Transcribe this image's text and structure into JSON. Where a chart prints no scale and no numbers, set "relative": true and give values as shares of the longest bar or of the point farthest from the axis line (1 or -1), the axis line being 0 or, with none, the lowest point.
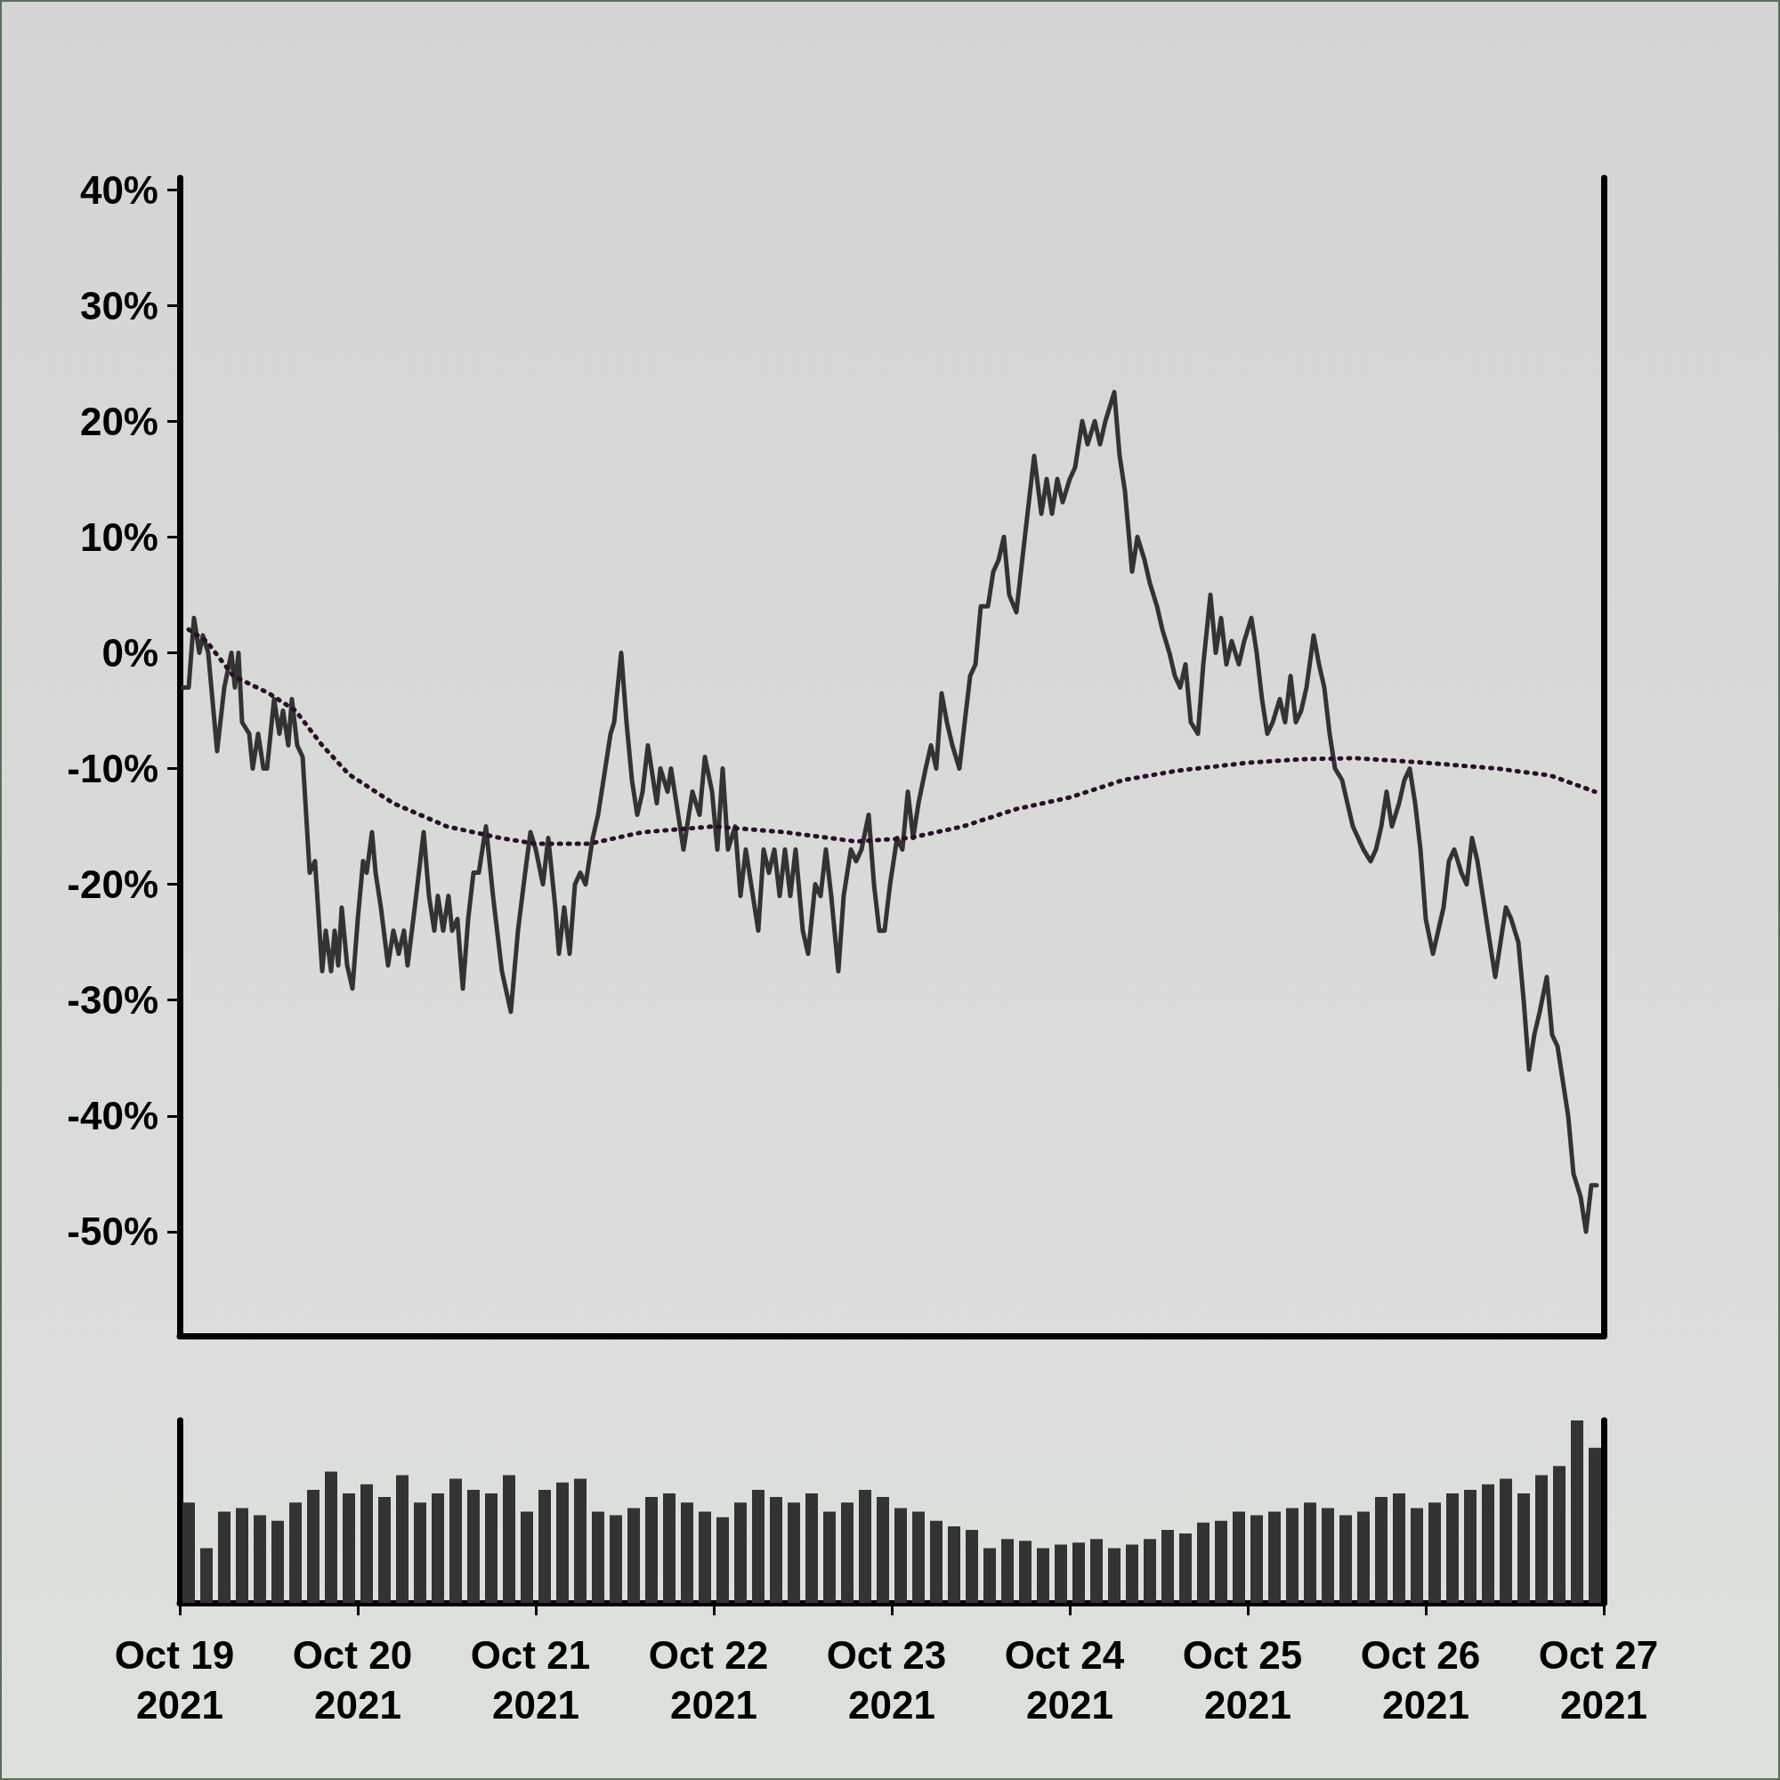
{
  "chart_data": [
    {
      "type": "line",
      "xlim": [
        "2021-10-19T00:00",
        "2021-10-27T00:00"
      ],
      "ylim": [
        -59,
        41
      ],
      "yticks": [
        {
          "value": -50,
          "label": "-50%"
        },
        {
          "value": -40,
          "label": "-40%"
        },
        {
          "value": -30,
          "label": "-30%"
        },
        {
          "value": -20,
          "label": "-20%"
        },
        {
          "value": -10,
          "label": "-10%"
        },
        {
          "value": 0,
          "label": "0%"
        },
        {
          "value": 10,
          "label": "10%"
        },
        {
          "value": 20,
          "label": "20%"
        },
        {
          "value": 30,
          "label": "30%"
        },
        {
          "value": 40,
          "label": "40%"
        }
      ],
      "tick_labels": "y",
      "series": [
        {
          "color": "#333333",
          "line_style": "solid",
          "x": [
            "2021-10-19T00:29",
            "2021-10-19T01:12",
            "2021-10-19T01:55",
            "2021-10-19T02:38",
            "2021-10-19T03:07",
            "2021-10-19T03:50",
            "2021-10-19T05:02",
            "2021-10-19T06:00",
            "2021-10-19T06:58",
            "2021-10-19T07:26",
            "2021-10-19T07:55",
            "2021-10-19T08:24",
            "2021-10-19T09:22",
            "2021-10-19T09:50",
            "2021-10-19T10:34",
            "2021-10-19T11:17",
            "2021-10-19T11:46",
            "2021-10-19T12:43",
            "2021-10-19T13:26",
            "2021-10-19T13:55",
            "2021-10-19T14:38",
            "2021-10-19T15:07",
            "2021-10-19T15:50",
            "2021-10-19T16:34",
            "2021-10-19T17:31",
            "2021-10-19T18:14",
            "2021-10-19T19:12",
            "2021-10-19T19:41",
            "2021-10-19T20:24",
            "2021-10-19T20:53",
            "2021-10-19T21:22",
            "2021-10-19T21:50",
            "2021-10-19T22:34",
            "2021-10-19T23:17",
            "2021-10-20T00:00",
            "2021-10-20T00:43",
            "2021-10-20T01:12",
            "2021-10-20T01:55",
            "2021-10-20T02:24",
            "2021-10-20T03:07",
            "2021-10-20T04:05",
            "2021-10-20T04:48",
            "2021-10-20T05:31",
            "2021-10-20T06:14",
            "2021-10-20T06:43",
            "2021-10-20T07:41",
            "2021-10-20T08:53",
            "2021-10-20T09:36",
            "2021-10-20T10:19",
            "2021-10-20T10:48",
            "2021-10-20T11:31",
            "2021-10-20T12:14",
            "2021-10-20T12:43",
            "2021-10-20T13:26",
            "2021-10-20T14:10",
            "2021-10-20T14:53",
            "2021-10-20T15:36",
            "2021-10-20T16:19",
            "2021-10-20T17:17",
            "2021-10-20T18:14",
            "2021-10-20T19:26",
            "2021-10-20T20:38",
            "2021-10-20T21:36",
            "2021-10-20T22:34",
            "2021-10-20T23:17",
            "2021-10-21T00:00",
            "2021-10-21T00:58",
            "2021-10-21T01:41",
            "2021-10-21T02:38",
            "2021-10-21T03:07",
            "2021-10-21T03:50",
            "2021-10-21T04:34",
            "2021-10-21T05:17",
            "2021-10-21T06:00",
            "2021-10-21T06:43",
            "2021-10-21T07:41",
            "2021-10-21T08:24",
            "2021-10-21T09:22",
            "2021-10-21T10:05",
            "2021-10-21T10:34",
            "2021-10-21T11:31",
            "2021-10-21T12:14",
            "2021-10-21T12:58",
            "2021-10-21T13:41",
            "2021-10-21T14:24",
            "2021-10-21T15:07",
            "2021-10-21T15:36",
            "2021-10-21T16:19",
            "2021-10-21T16:48",
            "2021-10-21T17:46",
            "2021-10-21T18:14",
            "2021-10-21T18:58",
            "2021-10-21T19:55",
            "2021-10-21T20:24",
            "2021-10-21T21:07",
            "2021-10-21T22:05",
            "2021-10-21T22:48",
            "2021-10-21T23:46",
            "2021-10-22T00:29",
            "2021-10-22T01:12",
            "2021-10-22T01:55",
            "2021-10-22T02:53",
            "2021-10-22T03:36",
            "2021-10-22T04:19",
            "2021-10-22T05:02",
            "2021-10-22T06:00",
            "2021-10-22T06:43",
            "2021-10-22T07:26",
            "2021-10-22T08:10",
            "2021-10-22T08:53",
            "2021-10-22T09:36",
            "2021-10-22T10:19",
            "2021-10-22T11:02",
            "2021-10-22T12:00",
            "2021-10-22T12:43",
            "2021-10-22T13:41",
            "2021-10-22T14:24",
            "2021-10-22T15:07",
            "2021-10-22T15:50",
            "2021-10-22T16:48",
            "2021-10-22T17:31",
            "2021-10-22T18:29",
            "2021-10-22T19:12",
            "2021-10-22T19:55",
            "2021-10-22T20:53",
            "2021-10-22T21:36",
            "2021-10-22T22:19",
            "2021-10-22T23:02",
            "2021-10-22T23:46",
            "2021-10-23T00:43",
            "2021-10-23T01:26",
            "2021-10-23T02:10",
            "2021-10-23T02:53",
            "2021-10-23T03:36",
            "2021-10-23T04:34",
            "2021-10-23T05:17",
            "2021-10-23T06:00",
            "2021-10-23T06:43",
            "2021-10-23T07:26",
            "2021-10-23T08:10",
            "2021-10-23T09:07",
            "2021-10-23T09:50",
            "2021-10-23T10:34",
            "2021-10-23T11:17",
            "2021-10-23T12:00",
            "2021-10-23T12:58",
            "2021-10-23T13:41",
            "2021-10-23T14:24",
            "2021-10-23T15:07",
            "2021-10-23T15:50",
            "2021-10-23T16:48",
            "2021-10-23T17:46",
            "2021-10-23T18:29",
            "2021-10-23T19:12",
            "2021-10-23T20:10",
            "2021-10-23T20:53",
            "2021-10-23T21:36",
            "2021-10-23T22:19",
            "2021-10-23T23:02",
            "2021-10-24T00:00",
            "2021-10-24T00:43",
            "2021-10-24T01:41",
            "2021-10-24T02:24",
            "2021-10-24T03:22",
            "2021-10-24T04:05",
            "2021-10-24T04:48",
            "2021-10-24T06:00",
            "2021-10-24T06:43",
            "2021-10-24T07:26",
            "2021-10-24T08:24",
            "2021-10-24T09:07",
            "2021-10-24T10:05",
            "2021-10-24T10:48",
            "2021-10-24T11:46",
            "2021-10-24T12:29",
            "2021-10-24T13:26",
            "2021-10-24T14:10",
            "2021-10-24T14:53",
            "2021-10-24T15:36",
            "2021-10-24T16:19",
            "2021-10-24T17:17",
            "2021-10-24T18:00",
            "2021-10-24T18:58",
            "2021-10-24T19:41",
            "2021-10-24T20:24",
            "2021-10-24T21:07",
            "2021-10-24T21:50",
            "2021-10-24T22:48",
            "2021-10-24T23:31",
            "2021-10-25T00:29",
            "2021-10-25T01:12",
            "2021-10-25T01:55",
            "2021-10-25T02:38",
            "2021-10-25T03:22",
            "2021-10-25T04:19",
            "2021-10-25T05:02",
            "2021-10-25T05:46",
            "2021-10-25T06:29",
            "2021-10-25T07:12",
            "2021-10-25T07:55",
            "2021-10-25T08:53",
            "2021-10-25T09:36",
            "2021-10-25T10:19",
            "2021-10-25T11:02",
            "2021-10-25T11:46",
            "2021-10-25T12:43",
            "2021-10-25T13:26",
            "2021-10-25T14:10",
            "2021-10-25T14:53",
            "2021-10-25T15:36",
            "2021-10-25T16:34",
            "2021-10-25T17:17",
            "2021-10-25T18:00",
            "2021-10-25T18:43",
            "2021-10-25T19:26",
            "2021-10-25T20:24",
            "2021-10-25T21:07",
            "2021-10-25T21:50",
            "2021-10-25T22:34",
            "2021-10-25T23:17",
            "2021-10-26T00:00",
            "2021-10-26T00:58",
            "2021-10-26T01:41",
            "2021-10-26T02:24",
            "2021-10-26T03:07",
            "2021-10-26T03:50",
            "2021-10-26T04:48",
            "2021-10-26T05:31",
            "2021-10-26T06:14",
            "2021-10-26T06:58",
            "2021-10-26T07:41",
            "2021-10-26T08:38",
            "2021-10-26T09:22",
            "2021-10-26T10:05",
            "2021-10-26T10:48",
            "2021-10-26T11:31",
            "2021-10-26T12:29",
            "2021-10-26T13:12",
            "2021-10-26T13:55",
            "2021-10-26T14:38",
            "2021-10-26T15:22",
            "2021-10-26T16:19",
            "2021-10-26T17:02",
            "2021-10-26T17:46",
            "2021-10-26T18:29",
            "2021-10-26T19:12",
            "2021-10-26T19:55",
            "2021-10-26T20:53",
            "2021-10-26T21:36",
            "2021-10-26T22:19",
            "2021-10-26T23:02"
          ],
          "values": [
            -3,
            -3,
            3,
            0,
            1.5,
            0,
            -8.5,
            -3,
            0,
            -3,
            0,
            -6,
            -7,
            -10,
            -7,
            -10,
            -10,
            -4,
            -7,
            -5,
            -8,
            -4,
            -8,
            -9,
            -19,
            -18,
            -27.5,
            -24,
            -27.5,
            -24,
            -27,
            -22,
            -27,
            -29,
            -23,
            -18,
            -19,
            -15.5,
            -19,
            -22,
            -27,
            -24,
            -26,
            -24,
            -27,
            -22,
            -15.5,
            -21,
            -24,
            -21,
            -24,
            -21,
            -24,
            -23,
            -29,
            -23,
            -19,
            -19,
            -15,
            -21,
            -27.5,
            -31,
            -24,
            -19,
            -15.5,
            -17,
            -20,
            -16,
            -22,
            -26,
            -22,
            -26,
            -20,
            -19,
            -20,
            -16,
            -14,
            -10,
            -7,
            -6,
            0,
            -6,
            -11,
            -14,
            -12,
            -8,
            -10,
            -13,
            -10,
            -12,
            -10,
            -13,
            -17,
            -15,
            -12,
            -14,
            -9,
            -12,
            -17,
            -10,
            -17,
            -15,
            -21,
            -17,
            -20,
            -24,
            -17,
            -19,
            -17,
            -21,
            -17,
            -21,
            -17,
            -24,
            -26,
            -20,
            -21,
            -17,
            -21,
            -27.5,
            -21,
            -17,
            -18,
            -17,
            -14,
            -20,
            -24,
            -24,
            -20,
            -16,
            -17,
            -12,
            -16,
            -13,
            -10,
            -8,
            -10,
            -3.5,
            -6,
            -8,
            -10,
            -6,
            -2,
            -1,
            4,
            4,
            7,
            8,
            10,
            5,
            3.5,
            9,
            13,
            17,
            12,
            15,
            12,
            15,
            13,
            15,
            16,
            20,
            18,
            20,
            18,
            20,
            22.5,
            17,
            14,
            7,
            10,
            8,
            6,
            4,
            2,
            0,
            -2,
            -3,
            -1,
            -6,
            -7,
            -1,
            5,
            0,
            3,
            -1,
            1,
            -1,
            1,
            3,
            0,
            -4,
            -7,
            -6,
            -4,
            -6,
            -2,
            -6,
            -5,
            -3,
            1.5,
            -1,
            -3,
            -7,
            -10,
            -11,
            -13,
            -15,
            -16,
            -17,
            -18,
            -17,
            -15,
            -12,
            -15,
            -13,
            -11,
            -10,
            -13,
            -17,
            -23,
            -26,
            -24,
            -22,
            -18,
            -17,
            -19,
            -20,
            -16,
            -18,
            -21,
            -25,
            -28,
            -25,
            -22,
            -23,
            -25,
            -30,
            -36,
            -33,
            -31,
            -28,
            -33,
            -34,
            -37,
            -40,
            -45,
            -47,
            -50,
            -46,
            -46
          ]
        },
        {
          "color": "#2a0f2a",
          "line_style": "dotted",
          "x": [
            "2021-10-19T01:12",
            "2021-10-19T03:36",
            "2021-10-19T07:12",
            "2021-10-19T12:00",
            "2021-10-19T15:36",
            "2021-10-19T19:12",
            "2021-10-19T22:48",
            "2021-10-20T04:48",
            "2021-10-20T12:00",
            "2021-10-20T19:12",
            "2021-10-21T00:00",
            "2021-10-21T07:12",
            "2021-10-21T14:24",
            "2021-10-22T00:00",
            "2021-10-22T09:36",
            "2021-10-22T19:12",
            "2021-10-23T02:24",
            "2021-10-23T09:36",
            "2021-10-23T16:48",
            "2021-10-24T00:00",
            "2021-10-24T07:12",
            "2021-10-24T14:24",
            "2021-10-25T00:00",
            "2021-10-25T07:12",
            "2021-10-25T14:24",
            "2021-10-26T00:00",
            "2021-10-26T09:36",
            "2021-10-26T16:48",
            "2021-10-26T22:48"
          ],
          "values": [
            2,
            1,
            -2,
            -3.5,
            -5,
            -8,
            -10.5,
            -13,
            -15,
            -16,
            -16.5,
            -16.5,
            -15.5,
            -15,
            -15.5,
            -16.3,
            -16,
            -15,
            -13.5,
            -12.5,
            -11,
            -10.2,
            -9.5,
            -9.2,
            -9.1,
            -9.5,
            -10,
            -10.6,
            -12
          ]
        }
      ]
    },
    {
      "type": "bar",
      "relative": true,
      "xlim": [
        "2021-10-19T00:00",
        "2021-10-27T00:00"
      ],
      "xticks": [
        {
          "value": "2021-10-19T00:00",
          "label": "Oct 19 2021"
        },
        {
          "value": "2021-10-20T00:00",
          "label": "Oct 20 2021"
        },
        {
          "value": "2021-10-21T00:00",
          "label": "Oct 21 2021"
        },
        {
          "value": "2021-10-22T00:00",
          "label": "Oct 22 2021"
        },
        {
          "value": "2021-10-23T00:00",
          "label": "Oct 23 2021"
        },
        {
          "value": "2021-10-24T00:00",
          "label": "Oct 24 2021"
        },
        {
          "value": "2021-10-25T00:00",
          "label": "Oct 25 2021"
        },
        {
          "value": "2021-10-26T00:00",
          "label": "Oct 26 2021"
        },
        {
          "value": "2021-10-27T00:00",
          "label": "Oct 27 2021"
        }
      ],
      "tick_labels": "x",
      "color": "#333333",
      "x": [
        "2021-10-19T01:12",
        "2021-10-19T03:36",
        "2021-10-19T06:00",
        "2021-10-19T08:24",
        "2021-10-19T10:48",
        "2021-10-19T13:12",
        "2021-10-19T15:36",
        "2021-10-19T18:00",
        "2021-10-19T20:24",
        "2021-10-19T22:48",
        "2021-10-20T01:12",
        "2021-10-20T03:36",
        "2021-10-20T06:00",
        "2021-10-20T08:24",
        "2021-10-20T10:48",
        "2021-10-20T13:12",
        "2021-10-20T15:36",
        "2021-10-20T18:00",
        "2021-10-20T20:24",
        "2021-10-20T22:48",
        "2021-10-21T01:12",
        "2021-10-21T03:36",
        "2021-10-21T06:00",
        "2021-10-21T08:24",
        "2021-10-21T10:48",
        "2021-10-21T13:12",
        "2021-10-21T15:36",
        "2021-10-21T18:00",
        "2021-10-21T20:24",
        "2021-10-21T22:48",
        "2021-10-22T01:12",
        "2021-10-22T03:36",
        "2021-10-22T06:00",
        "2021-10-22T08:24",
        "2021-10-22T10:48",
        "2021-10-22T13:12",
        "2021-10-22T15:36",
        "2021-10-22T18:00",
        "2021-10-22T20:24",
        "2021-10-22T22:48",
        "2021-10-23T01:12",
        "2021-10-23T03:36",
        "2021-10-23T06:00",
        "2021-10-23T08:24",
        "2021-10-23T10:48",
        "2021-10-23T13:12",
        "2021-10-23T15:36",
        "2021-10-23T18:00",
        "2021-10-23T20:24",
        "2021-10-23T22:48",
        "2021-10-24T01:12",
        "2021-10-24T03:36",
        "2021-10-24T06:00",
        "2021-10-24T08:24",
        "2021-10-24T10:48",
        "2021-10-24T13:12",
        "2021-10-24T15:36",
        "2021-10-24T18:00",
        "2021-10-24T20:24",
        "2021-10-24T22:48",
        "2021-10-25T01:12",
        "2021-10-25T03:36",
        "2021-10-25T06:00",
        "2021-10-25T08:24",
        "2021-10-25T10:48",
        "2021-10-25T13:12",
        "2021-10-25T15:36",
        "2021-10-25T18:00",
        "2021-10-25T20:24",
        "2021-10-25T22:48",
        "2021-10-26T01:12",
        "2021-10-26T03:36",
        "2021-10-26T06:00",
        "2021-10-26T08:24",
        "2021-10-26T10:48",
        "2021-10-26T13:12",
        "2021-10-26T15:36",
        "2021-10-26T18:00",
        "2021-10-26T20:24",
        "2021-10-26T22:48"
      ],
      "values": [
        0.55,
        0.3,
        0.5,
        0.52,
        0.48,
        0.45,
        0.55,
        0.62,
        0.72,
        0.6,
        0.65,
        0.58,
        0.7,
        0.55,
        0.6,
        0.68,
        0.62,
        0.6,
        0.7,
        0.5,
        0.62,
        0.66,
        0.68,
        0.5,
        0.48,
        0.52,
        0.58,
        0.6,
        0.55,
        0.5,
        0.47,
        0.55,
        0.62,
        0.58,
        0.55,
        0.6,
        0.5,
        0.55,
        0.62,
        0.58,
        0.52,
        0.5,
        0.45,
        0.42,
        0.4,
        0.3,
        0.35,
        0.34,
        0.3,
        0.32,
        0.33,
        0.35,
        0.3,
        0.32,
        0.35,
        0.4,
        0.38,
        0.44,
        0.45,
        0.5,
        0.48,
        0.5,
        0.52,
        0.55,
        0.52,
        0.48,
        0.5,
        0.58,
        0.6,
        0.52,
        0.55,
        0.6,
        0.62,
        0.65,
        0.68,
        0.6,
        0.7,
        0.75,
        1,
        0.85
      ]
    }
  ]
}
